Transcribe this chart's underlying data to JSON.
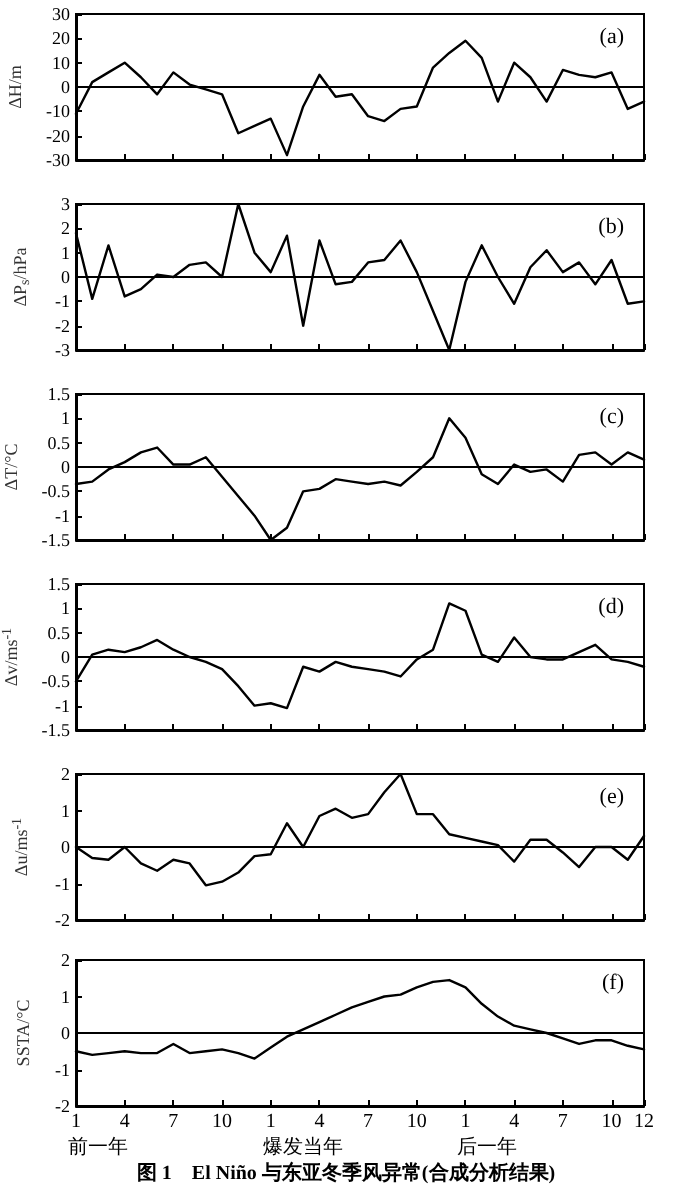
{
  "chart_data": [
    {
      "type": "line",
      "ylabel": "ΔH/m",
      "annotations": [
        "(a)"
      ],
      "categories": [
        "1",
        null,
        null,
        "4",
        null,
        null,
        "7",
        null,
        null,
        "10",
        null,
        null,
        "1",
        null,
        null,
        "4",
        null,
        null,
        "7",
        null,
        null,
        "10",
        null,
        null,
        "1",
        null,
        null,
        "4",
        null,
        null,
        "7",
        null,
        null,
        "10",
        null,
        "12"
      ],
      "series": [
        {
          "color": "#000000",
          "values": [
            -11,
            2,
            6,
            10,
            4,
            -3,
            6,
            1,
            -1,
            -3,
            -19,
            -16,
            -13,
            -28,
            -8,
            5,
            -4,
            -3,
            -12,
            -14,
            -9,
            -8,
            8,
            14,
            19,
            12,
            -6,
            10,
            4,
            -6,
            7,
            5,
            4,
            6,
            -9,
            -6
          ]
        }
      ],
      "ylim": [
        -30,
        30
      ],
      "yticks": [
        -30,
        -20,
        -10,
        0,
        10,
        20,
        30
      ],
      "ref_lines": [
        {
          "axis": "y",
          "value": 0
        }
      ],
      "tick_labels": "y",
      "marker": "none",
      "line_style": "solid"
    },
    {
      "type": "line",
      "ylabel": "ΔP$_{s}$/hPa",
      "annotations": [
        "(b)"
      ],
      "categories": [
        "1",
        null,
        null,
        "4",
        null,
        null,
        "7",
        null,
        null,
        "10",
        null,
        null,
        "1",
        null,
        null,
        "4",
        null,
        null,
        "7",
        null,
        null,
        "10",
        null,
        null,
        "1",
        null,
        null,
        "4",
        null,
        null,
        "7",
        null,
        null,
        "10",
        null,
        "12"
      ],
      "series": [
        {
          "color": "#000000",
          "values": [
            1.8,
            -0.9,
            1.3,
            -0.8,
            -0.5,
            0.1,
            0.0,
            0.5,
            0.6,
            0.0,
            3.0,
            1.0,
            0.2,
            1.7,
            -2.0,
            1.5,
            -0.3,
            -0.2,
            0.6,
            0.7,
            1.5,
            0.2,
            -1.4,
            -3.0,
            -0.2,
            1.3,
            0.0,
            -1.1,
            0.4,
            1.1,
            0.2,
            0.6,
            -0.3,
            0.7,
            -1.1,
            -1.0
          ]
        }
      ],
      "ylim": [
        -3,
        3
      ],
      "yticks": [
        -3,
        -2,
        -1,
        0,
        1,
        2,
        3
      ],
      "ref_lines": [
        {
          "axis": "y",
          "value": 0
        }
      ],
      "tick_labels": "y",
      "marker": "none",
      "line_style": "solid"
    },
    {
      "type": "line",
      "ylabel": "ΔT/°C",
      "annotations": [
        "(c)"
      ],
      "categories": [
        "1",
        null,
        null,
        "4",
        null,
        null,
        "7",
        null,
        null,
        "10",
        null,
        null,
        "1",
        null,
        null,
        "4",
        null,
        null,
        "7",
        null,
        null,
        "10",
        null,
        null,
        "1",
        null,
        null,
        "4",
        null,
        null,
        "7",
        null,
        null,
        "10",
        null,
        "12"
      ],
      "series": [
        {
          "color": "#000000",
          "values": [
            -0.35,
            -0.3,
            -0.05,
            0.1,
            0.3,
            0.4,
            0.05,
            0.05,
            0.2,
            -0.2,
            -0.6,
            -1.0,
            -1.5,
            -1.25,
            -0.5,
            -0.45,
            -0.25,
            -0.3,
            -0.35,
            -0.3,
            -0.38,
            -0.1,
            0.2,
            1.0,
            0.6,
            -0.15,
            -0.35,
            0.05,
            -0.1,
            -0.05,
            -0.3,
            0.25,
            0.3,
            0.05,
            0.3,
            0.15
          ]
        }
      ],
      "ylim": [
        -1.5,
        1.5
      ],
      "yticks": [
        -1.5,
        -1,
        -0.5,
        0,
        0.5,
        1,
        1.5
      ],
      "ref_lines": [
        {
          "axis": "y",
          "value": 0
        }
      ],
      "tick_labels": "y",
      "marker": "none",
      "line_style": "solid"
    },
    {
      "type": "line",
      "ylabel": "Δv/ms$^{-1}$",
      "annotations": [
        "(d)"
      ],
      "categories": [
        "1",
        null,
        null,
        "4",
        null,
        null,
        "7",
        null,
        null,
        "10",
        null,
        null,
        "1",
        null,
        null,
        "4",
        null,
        null,
        "7",
        null,
        null,
        "10",
        null,
        null,
        "1",
        null,
        null,
        "4",
        null,
        null,
        "7",
        null,
        null,
        "10",
        null,
        "12"
      ],
      "series": [
        {
          "color": "#000000",
          "values": [
            -0.5,
            0.05,
            0.15,
            0.1,
            0.2,
            0.35,
            0.15,
            0.0,
            -0.1,
            -0.25,
            -0.6,
            -1.0,
            -0.95,
            -1.05,
            -0.2,
            -0.3,
            -0.1,
            -0.2,
            -0.25,
            -0.3,
            -0.4,
            -0.05,
            0.15,
            1.1,
            0.95,
            0.05,
            -0.1,
            0.4,
            0.0,
            -0.05,
            -0.05,
            0.1,
            0.25,
            -0.05,
            -0.1,
            -0.2
          ]
        }
      ],
      "ylim": [
        -1.5,
        1.5
      ],
      "yticks": [
        -1.5,
        -1,
        -0.5,
        0,
        0.5,
        1,
        1.5
      ],
      "ref_lines": [
        {
          "axis": "y",
          "value": 0
        }
      ],
      "tick_labels": "y",
      "marker": "none",
      "line_style": "solid"
    },
    {
      "type": "line",
      "ylabel": "Δu/ms$^{-1}$",
      "annotations": [
        "(e)"
      ],
      "categories": [
        "1",
        null,
        null,
        "4",
        null,
        null,
        "7",
        null,
        null,
        "10",
        null,
        null,
        "1",
        null,
        null,
        "4",
        null,
        null,
        "7",
        null,
        null,
        "10",
        null,
        null,
        "1",
        null,
        null,
        "4",
        null,
        null,
        "7",
        null,
        null,
        "10",
        null,
        "12"
      ],
      "series": [
        {
          "color": "#000000",
          "values": [
            0.0,
            -0.3,
            -0.35,
            0.0,
            -0.45,
            -0.65,
            -0.35,
            -0.45,
            -1.05,
            -0.95,
            -0.7,
            -0.25,
            -0.2,
            0.65,
            0.0,
            0.85,
            1.05,
            0.8,
            0.9,
            1.5,
            2.0,
            0.9,
            0.9,
            0.35,
            0.25,
            0.15,
            0.05,
            -0.4,
            0.2,
            0.2,
            -0.15,
            -0.55,
            0.0,
            0.0,
            -0.35,
            0.3
          ]
        }
      ],
      "ylim": [
        -2,
        2
      ],
      "yticks": [
        -2,
        -1,
        0,
        1,
        2
      ],
      "ref_lines": [
        {
          "axis": "y",
          "value": 0
        }
      ],
      "tick_labels": "y",
      "marker": "none",
      "line_style": "solid"
    },
    {
      "type": "line",
      "ylabel": "SSTA/°C",
      "annotations": [
        "(f)",
        "前一年",
        "爆发当年",
        "后一年",
        "图 1　El Niño 与东亚冬季风异常(合成分析结果)"
      ],
      "categories": [
        "1",
        null,
        null,
        "4",
        null,
        null,
        "7",
        null,
        null,
        "10",
        null,
        null,
        "1",
        null,
        null,
        "4",
        null,
        null,
        "7",
        null,
        null,
        "10",
        null,
        null,
        "1",
        null,
        null,
        "4",
        null,
        null,
        "7",
        null,
        null,
        "10",
        null,
        "12"
      ],
      "series": [
        {
          "color": "#000000",
          "values": [
            -0.5,
            -0.6,
            -0.55,
            -0.5,
            -0.55,
            -0.55,
            -0.3,
            -0.55,
            -0.5,
            -0.45,
            -0.55,
            -0.7,
            -0.4,
            -0.1,
            0.1,
            0.3,
            0.5,
            0.7,
            0.85,
            1.0,
            1.05,
            1.25,
            1.4,
            1.45,
            1.25,
            0.8,
            0.45,
            0.2,
            0.1,
            0.0,
            -0.15,
            -0.3,
            -0.2,
            -0.2,
            -0.35,
            -0.45
          ]
        }
      ],
      "ylim": [
        -2,
        2
      ],
      "yticks": [
        -2,
        -1,
        0,
        1,
        2
      ],
      "ref_lines": [
        {
          "axis": "y",
          "value": 0
        }
      ],
      "marker": "none",
      "line_style": "solid"
    }
  ]
}
